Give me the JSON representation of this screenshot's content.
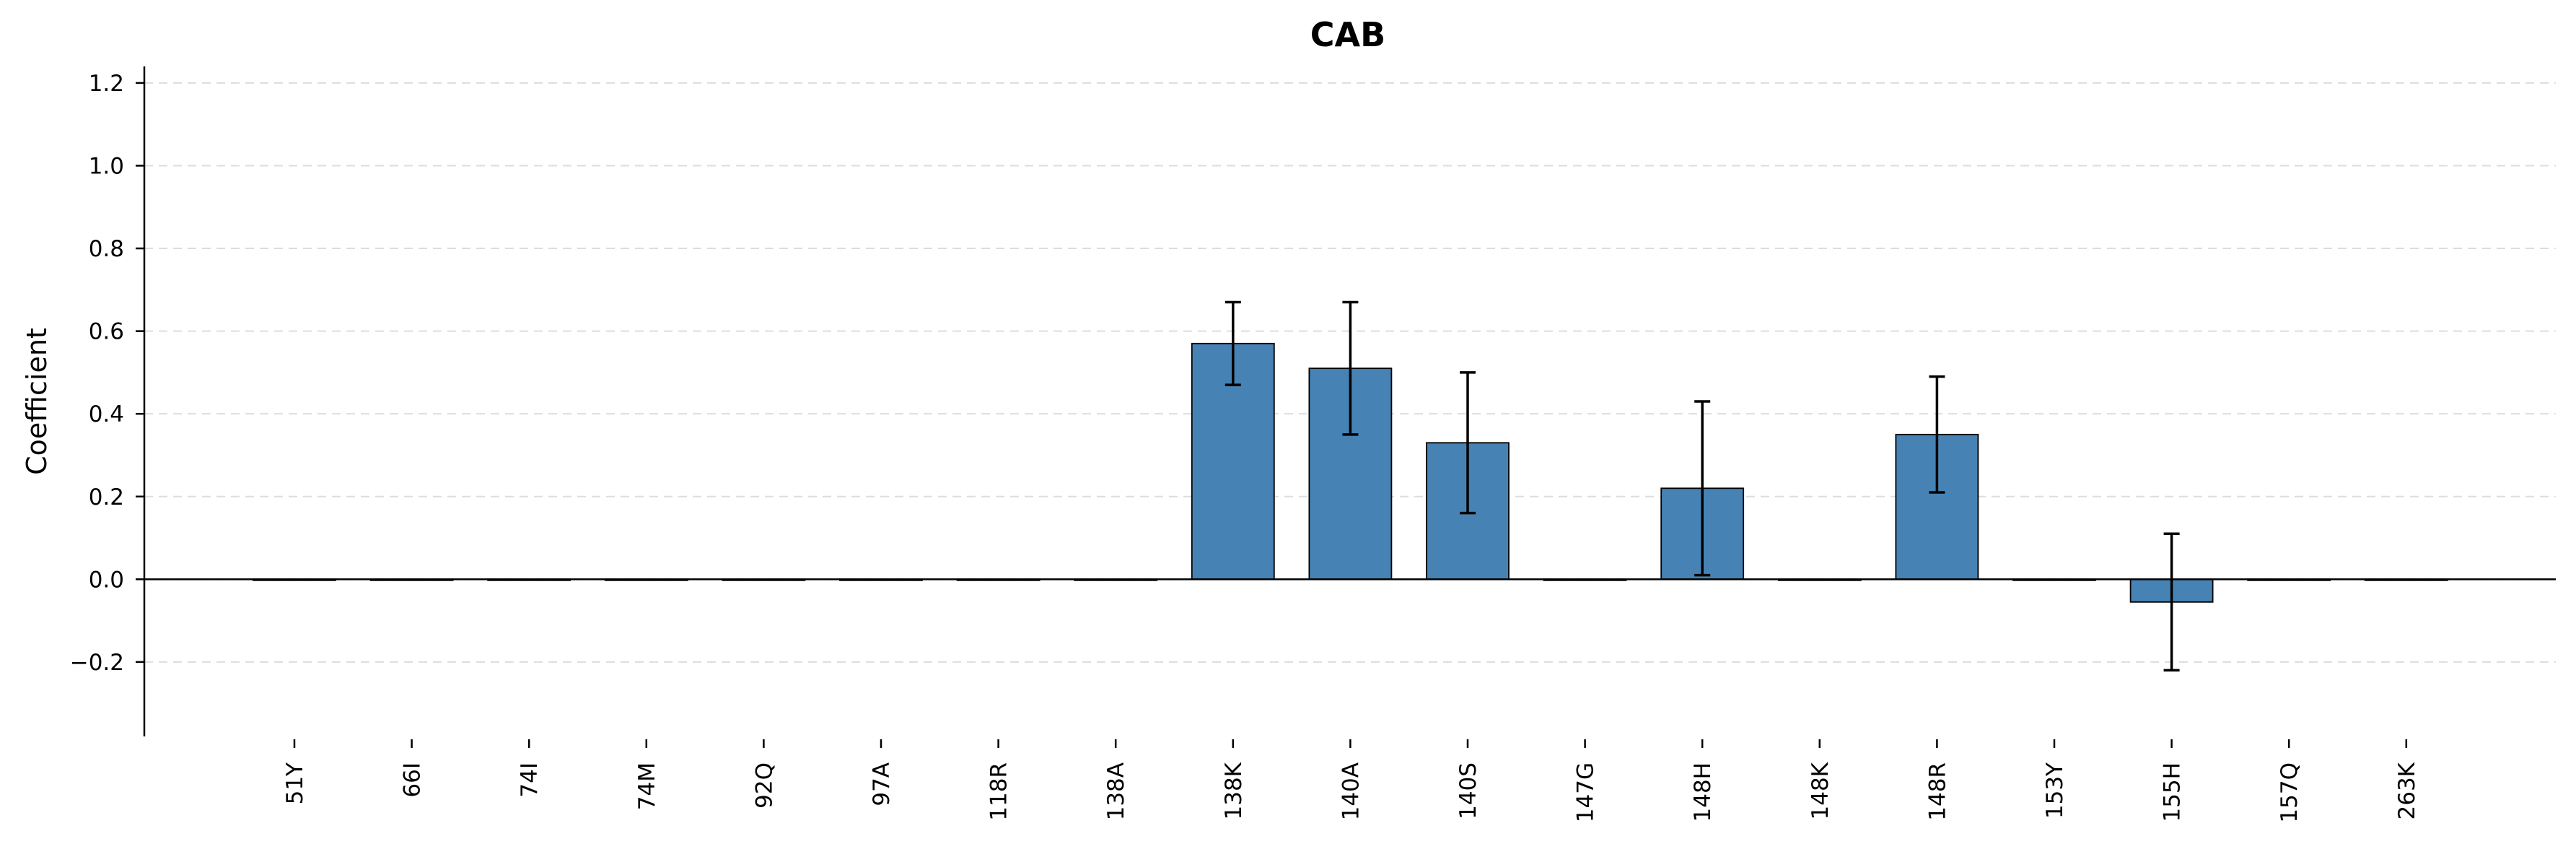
{
  "chart_data": {
    "type": "bar",
    "title": "CAB",
    "xlabel": "",
    "ylabel": "Coefficient",
    "ylim": [
      -0.38,
      1.24
    ],
    "yticks": [
      -0.2,
      0.0,
      0.2,
      0.4,
      0.6,
      0.8,
      1.0,
      1.2
    ],
    "ytick_labels": [
      "−0.2",
      "0.0",
      "0.2",
      "0.4",
      "0.6",
      "0.8",
      "1.0",
      "1.2"
    ],
    "grid": "horizontal dashed",
    "bar_color": "#4682b4",
    "categories": [
      "51Y",
      "66I",
      "74I",
      "74M",
      "92Q",
      "97A",
      "118R",
      "138A",
      "138K",
      "140A",
      "140S",
      "147G",
      "148H",
      "148K",
      "148R",
      "153Y",
      "155H",
      "157Q",
      "263K"
    ],
    "values": [
      0,
      0,
      0,
      0,
      0,
      0,
      0,
      0,
      0.57,
      0.51,
      0.33,
      0,
      0.22,
      0,
      0.35,
      0,
      -0.055,
      0,
      0
    ],
    "errors": [
      0,
      0,
      0,
      0,
      0,
      0,
      0,
      0,
      0.1,
      0.16,
      0.17,
      0,
      0.21,
      0,
      0.14,
      0,
      0.165,
      0,
      0
    ]
  }
}
